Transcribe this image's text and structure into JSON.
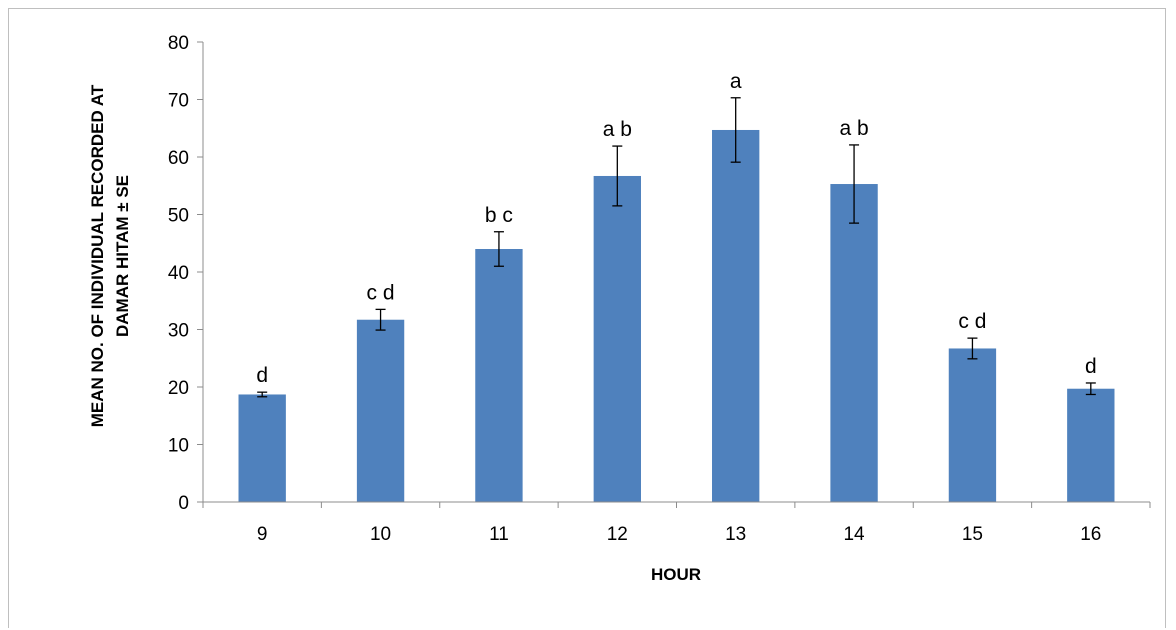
{
  "chart_data": {
    "type": "bar",
    "title": "",
    "xlabel": "HOUR",
    "ylabel_lines": [
      "MEAN NO. OF INDIVIDUAL  RECORDED AT",
      "DAMAR HITAM ± SE"
    ],
    "categories": [
      "9",
      "10",
      "11",
      "12",
      "13",
      "14",
      "15",
      "16"
    ],
    "values": [
      18.7,
      31.7,
      44.0,
      56.7,
      64.7,
      55.3,
      26.7,
      19.7
    ],
    "error": [
      0.4,
      1.8,
      3.0,
      5.2,
      5.6,
      6.8,
      1.8,
      1.0
    ],
    "significance_labels": [
      "d",
      "c d",
      "b c",
      "a b",
      "a",
      "a b",
      "c d",
      "d"
    ],
    "ylim": [
      0,
      80
    ],
    "yticks": [
      0,
      10,
      20,
      30,
      40,
      50,
      60,
      70,
      80
    ],
    "bar_color": "#4f81bd",
    "grid": false,
    "legend": "none"
  }
}
